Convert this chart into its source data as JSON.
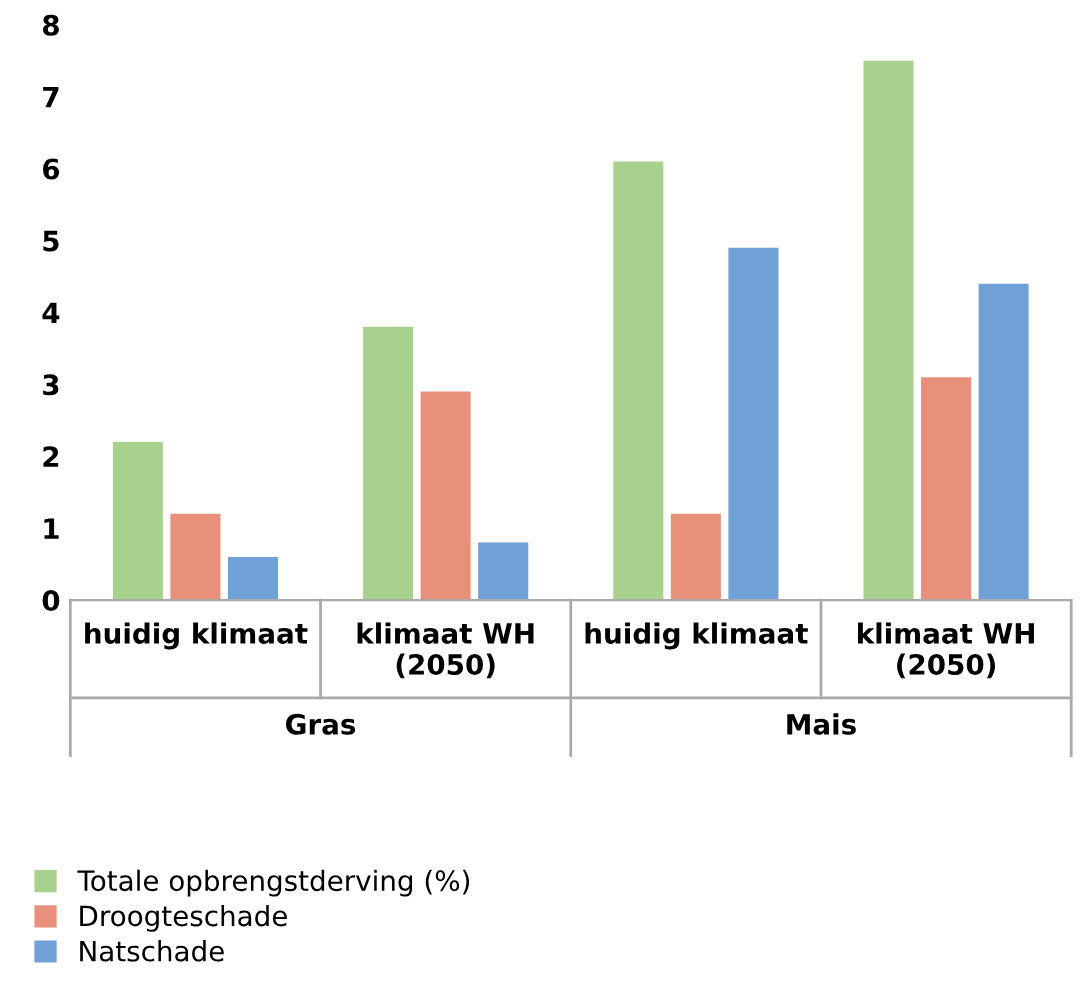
{
  "chart_data": {
    "type": "bar",
    "categories": [
      "huidig klimaat",
      "klimaat WH\n(2050)",
      "huidig klimaat",
      "klimaat WH\n(2050)"
    ],
    "series": [
      {
        "name": "Totale opbrengstderving (%)",
        "color": "#a9d18e",
        "values": [
          2.2,
          3.8,
          6.1,
          7.5
        ]
      },
      {
        "name": "Droogteschade",
        "color": "#e8907a",
        "values": [
          1.2,
          2.9,
          1.2,
          3.1
        ]
      },
      {
        "name": "Natschade",
        "color": "#6fa0d6",
        "values": [
          0.6,
          0.8,
          4.9,
          4.4
        ]
      }
    ],
    "annotations": [
      "Gras",
      "Mais"
    ],
    "ylim": [
      0,
      8
    ],
    "yticks": [
      0,
      1,
      2,
      3,
      4,
      5,
      6,
      7,
      8
    ],
    "grid": false,
    "legend": "bottom"
  }
}
